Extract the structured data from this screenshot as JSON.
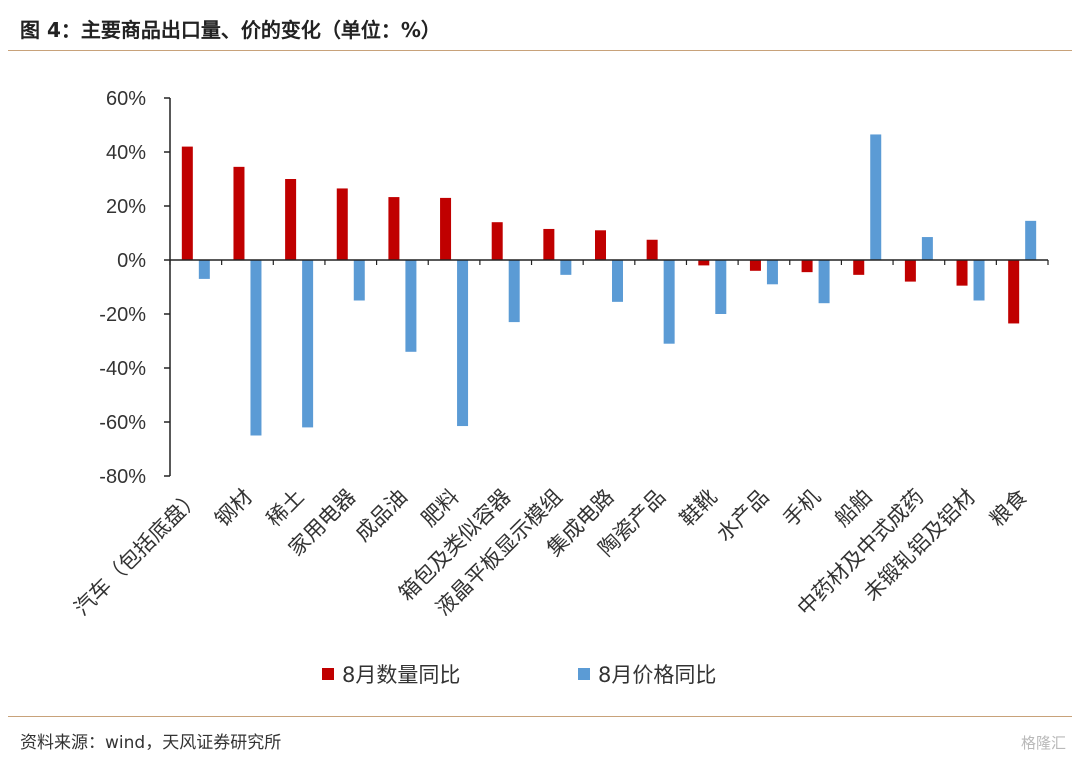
{
  "header": {
    "title": "图 4：主要商品出口量、价的变化（单位：%）"
  },
  "footer": {
    "source": "资料来源：wind，天风证券研究所",
    "watermark": "格隆汇"
  },
  "chart_data": {
    "type": "bar",
    "title": "图 4：主要商品出口量、价的变化（单位：%）",
    "xlabel": "",
    "ylabel": "",
    "ylim": [
      -80,
      60
    ],
    "yticks": [
      60,
      40,
      20,
      0,
      -20,
      -40,
      -60,
      -80
    ],
    "ytick_labels": [
      "60%",
      "40%",
      "20%",
      "0%",
      "-20%",
      "-40%",
      "-60%",
      "-80%"
    ],
    "grid": false,
    "legend_position": "bottom",
    "categories": [
      "汽车（包括底盘）",
      "钢材",
      "稀土",
      "家用电器",
      "成品油",
      "肥料",
      "箱包及类似容器",
      "液晶平板显示模组",
      "集成电路",
      "陶瓷产品",
      "鞋靴",
      "水产品",
      "手机",
      "船舶",
      "中药材及中式成药",
      "未锻轧铝及铝材",
      "粮食"
    ],
    "series": [
      {
        "name": "8月数量同比",
        "color": "#c00000",
        "values": [
          42,
          34.5,
          30,
          26.5,
          23.3,
          23,
          14,
          11.5,
          11,
          7.5,
          -2,
          -4,
          -4.5,
          -5.5,
          -8,
          -9.5,
          -23.5
        ]
      },
      {
        "name": "8月价格同比",
        "color": "#5b9bd5",
        "values": [
          -7,
          -65,
          -62,
          -15,
          -34,
          -61.5,
          -23,
          -5.5,
          -15.5,
          -31,
          -20,
          -9,
          -16,
          46.5,
          8.5,
          -15,
          14.5
        ]
      }
    ]
  }
}
